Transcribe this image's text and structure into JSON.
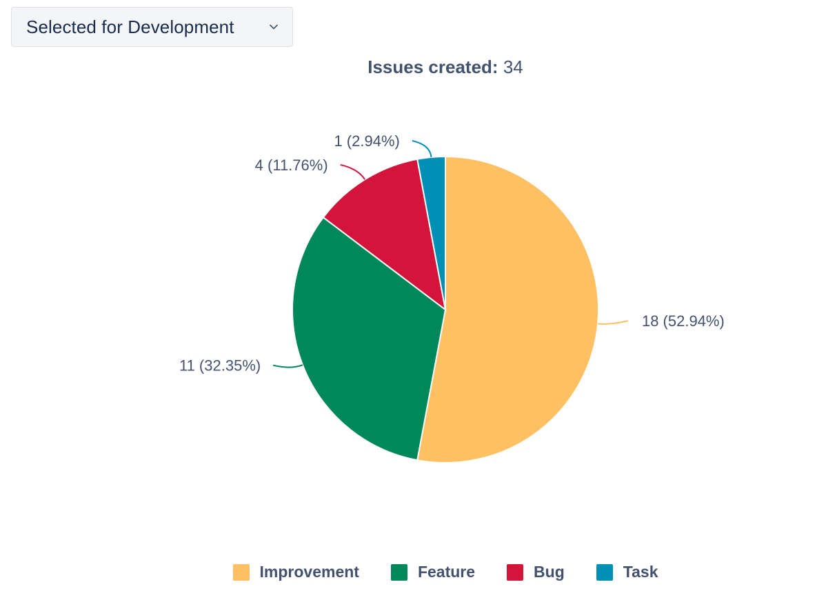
{
  "status_filter": {
    "selected": "Selected for Development",
    "icon": "chevron-down-icon"
  },
  "chart_data": {
    "type": "pie",
    "title_key": "Issues created:",
    "title_value": "34",
    "total": 34,
    "slices": [
      {
        "name": "Improvement",
        "value": 18,
        "percent": "52.94%",
        "label": "18 (52.94%)",
        "color": "#ffc064"
      },
      {
        "name": "Feature",
        "value": 11,
        "percent": "32.35%",
        "label": "11 (32.35%)",
        "color": "#00875a"
      },
      {
        "name": "Bug",
        "value": 4,
        "percent": "11.76%",
        "label": "4 (11.76%)",
        "color": "#d3143b"
      },
      {
        "name": "Task",
        "value": 1,
        "percent": "2.94%",
        "label": "1 (2.94%)",
        "color": "#0090b6"
      }
    ],
    "legend_placement": "bottom-center"
  }
}
